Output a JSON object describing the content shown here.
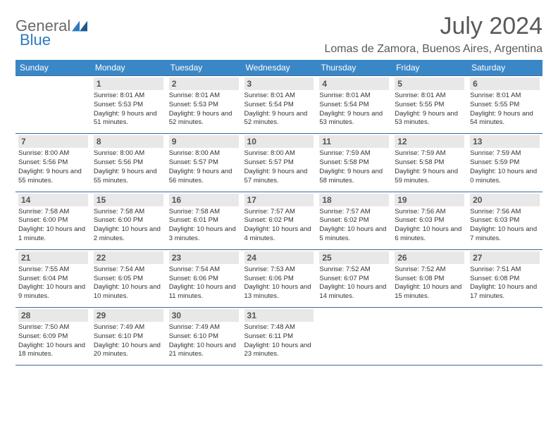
{
  "logo": {
    "word1": "General",
    "word2": "Blue"
  },
  "title": "July 2024",
  "location": "Lomas de Zamora, Buenos Aires, Argentina",
  "colors": {
    "header_bg": "#3a87c8",
    "header_fg": "#ffffff",
    "border": "#3a6a9a",
    "daynum_bg": "#e8e8e8",
    "title_color": "#595959"
  },
  "weekdays": [
    "Sunday",
    "Monday",
    "Tuesday",
    "Wednesday",
    "Thursday",
    "Friday",
    "Saturday"
  ],
  "weeks": [
    [
      null,
      {
        "n": "1",
        "sr": "8:01 AM",
        "ss": "5:53 PM",
        "dl": "9 hours and 51 minutes."
      },
      {
        "n": "2",
        "sr": "8:01 AM",
        "ss": "5:53 PM",
        "dl": "9 hours and 52 minutes."
      },
      {
        "n": "3",
        "sr": "8:01 AM",
        "ss": "5:54 PM",
        "dl": "9 hours and 52 minutes."
      },
      {
        "n": "4",
        "sr": "8:01 AM",
        "ss": "5:54 PM",
        "dl": "9 hours and 53 minutes."
      },
      {
        "n": "5",
        "sr": "8:01 AM",
        "ss": "5:55 PM",
        "dl": "9 hours and 53 minutes."
      },
      {
        "n": "6",
        "sr": "8:01 AM",
        "ss": "5:55 PM",
        "dl": "9 hours and 54 minutes."
      }
    ],
    [
      {
        "n": "7",
        "sr": "8:00 AM",
        "ss": "5:56 PM",
        "dl": "9 hours and 55 minutes."
      },
      {
        "n": "8",
        "sr": "8:00 AM",
        "ss": "5:56 PM",
        "dl": "9 hours and 55 minutes."
      },
      {
        "n": "9",
        "sr": "8:00 AM",
        "ss": "5:57 PM",
        "dl": "9 hours and 56 minutes."
      },
      {
        "n": "10",
        "sr": "8:00 AM",
        "ss": "5:57 PM",
        "dl": "9 hours and 57 minutes."
      },
      {
        "n": "11",
        "sr": "7:59 AM",
        "ss": "5:58 PM",
        "dl": "9 hours and 58 minutes."
      },
      {
        "n": "12",
        "sr": "7:59 AM",
        "ss": "5:58 PM",
        "dl": "9 hours and 59 minutes."
      },
      {
        "n": "13",
        "sr": "7:59 AM",
        "ss": "5:59 PM",
        "dl": "10 hours and 0 minutes."
      }
    ],
    [
      {
        "n": "14",
        "sr": "7:58 AM",
        "ss": "6:00 PM",
        "dl": "10 hours and 1 minute."
      },
      {
        "n": "15",
        "sr": "7:58 AM",
        "ss": "6:00 PM",
        "dl": "10 hours and 2 minutes."
      },
      {
        "n": "16",
        "sr": "7:58 AM",
        "ss": "6:01 PM",
        "dl": "10 hours and 3 minutes."
      },
      {
        "n": "17",
        "sr": "7:57 AM",
        "ss": "6:02 PM",
        "dl": "10 hours and 4 minutes."
      },
      {
        "n": "18",
        "sr": "7:57 AM",
        "ss": "6:02 PM",
        "dl": "10 hours and 5 minutes."
      },
      {
        "n": "19",
        "sr": "7:56 AM",
        "ss": "6:03 PM",
        "dl": "10 hours and 6 minutes."
      },
      {
        "n": "20",
        "sr": "7:56 AM",
        "ss": "6:03 PM",
        "dl": "10 hours and 7 minutes."
      }
    ],
    [
      {
        "n": "21",
        "sr": "7:55 AM",
        "ss": "6:04 PM",
        "dl": "10 hours and 9 minutes."
      },
      {
        "n": "22",
        "sr": "7:54 AM",
        "ss": "6:05 PM",
        "dl": "10 hours and 10 minutes."
      },
      {
        "n": "23",
        "sr": "7:54 AM",
        "ss": "6:06 PM",
        "dl": "10 hours and 11 minutes."
      },
      {
        "n": "24",
        "sr": "7:53 AM",
        "ss": "6:06 PM",
        "dl": "10 hours and 13 minutes."
      },
      {
        "n": "25",
        "sr": "7:52 AM",
        "ss": "6:07 PM",
        "dl": "10 hours and 14 minutes."
      },
      {
        "n": "26",
        "sr": "7:52 AM",
        "ss": "6:08 PM",
        "dl": "10 hours and 15 minutes."
      },
      {
        "n": "27",
        "sr": "7:51 AM",
        "ss": "6:08 PM",
        "dl": "10 hours and 17 minutes."
      }
    ],
    [
      {
        "n": "28",
        "sr": "7:50 AM",
        "ss": "6:09 PM",
        "dl": "10 hours and 18 minutes."
      },
      {
        "n": "29",
        "sr": "7:49 AM",
        "ss": "6:10 PM",
        "dl": "10 hours and 20 minutes."
      },
      {
        "n": "30",
        "sr": "7:49 AM",
        "ss": "6:10 PM",
        "dl": "10 hours and 21 minutes."
      },
      {
        "n": "31",
        "sr": "7:48 AM",
        "ss": "6:11 PM",
        "dl": "10 hours and 23 minutes."
      },
      null,
      null,
      null
    ]
  ],
  "labels": {
    "sunrise": "Sunrise:",
    "sunset": "Sunset:",
    "daylight": "Daylight:"
  }
}
